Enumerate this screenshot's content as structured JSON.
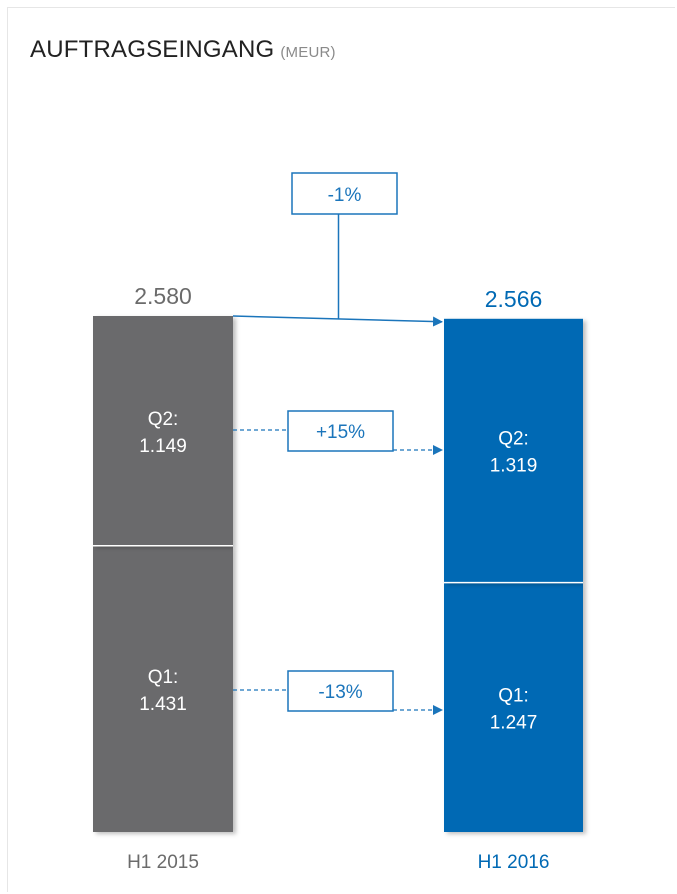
{
  "title": "AUFTRAGSEINGANG",
  "unit": "(MEUR)",
  "colors": {
    "h1_2015": "#6b6a6c",
    "h1_2016": "#0069b4",
    "total_2015_text": "#6b6b6b",
    "accent": "#1b75bb"
  },
  "chart_data": {
    "type": "bar",
    "stacked": true,
    "categories": [
      "H1 2015",
      "H1 2016"
    ],
    "segments": [
      {
        "quarter": "Q1",
        "label": "Q1:",
        "values": [
          1431,
          1247
        ],
        "value_labels": [
          "1.431",
          "1.247"
        ]
      },
      {
        "quarter": "Q2",
        "label": "Q2:",
        "values": [
          1149,
          1319
        ],
        "value_labels": [
          "1.149",
          "1.319"
        ]
      }
    ],
    "totals": [
      2580,
      2566
    ],
    "total_labels": [
      "2.580",
      "2.566"
    ],
    "changes": {
      "total": "-1%",
      "Q2": "+15%",
      "Q1": "-13%"
    },
    "ylim": [
      0,
      2580
    ]
  }
}
